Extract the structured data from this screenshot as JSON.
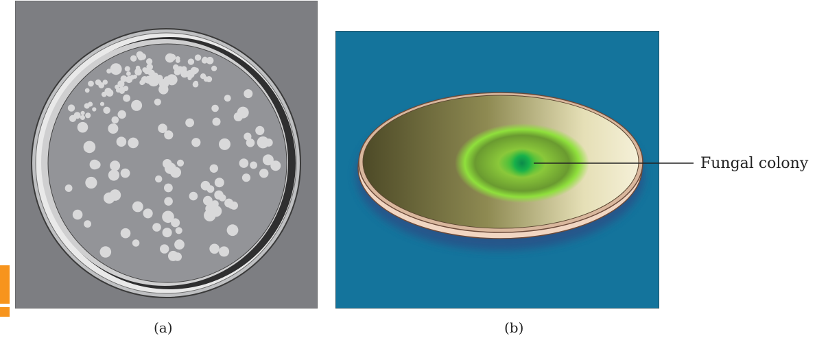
{
  "panel_a": {
    "caption": "(a)",
    "background": "#7d7e82",
    "plate_fill": "#939498",
    "colony_fill": "#d9d9da"
  },
  "panel_b": {
    "caption": "(b)",
    "background": "#14749c",
    "colony_label": "Fungal colony",
    "colony_color": "#2fbf3a"
  },
  "accent": "#f7941d"
}
